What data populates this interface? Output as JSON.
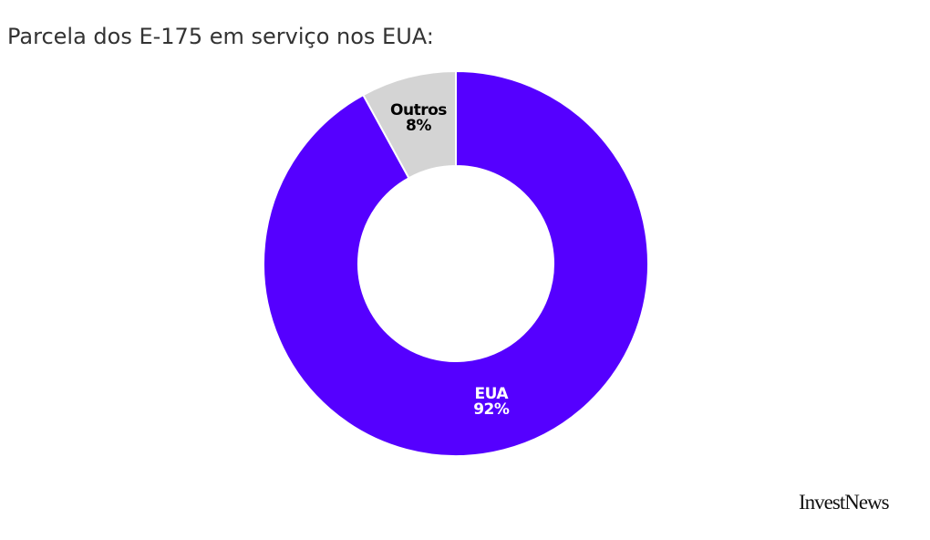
{
  "chart_data": {
    "type": "pie",
    "title": "Parcela dos E-175 em serviço nos EUA:",
    "donut": true,
    "categories": [
      "EUA",
      "Outros"
    ],
    "values": [
      92,
      8
    ],
    "value_labels": [
      "92%",
      "8%"
    ],
    "colors": [
      "#5500ff",
      "#d4d4d4"
    ],
    "label_colors": [
      "#ffffff",
      "#000000"
    ]
  },
  "branding": {
    "logo": "InvestNews"
  }
}
